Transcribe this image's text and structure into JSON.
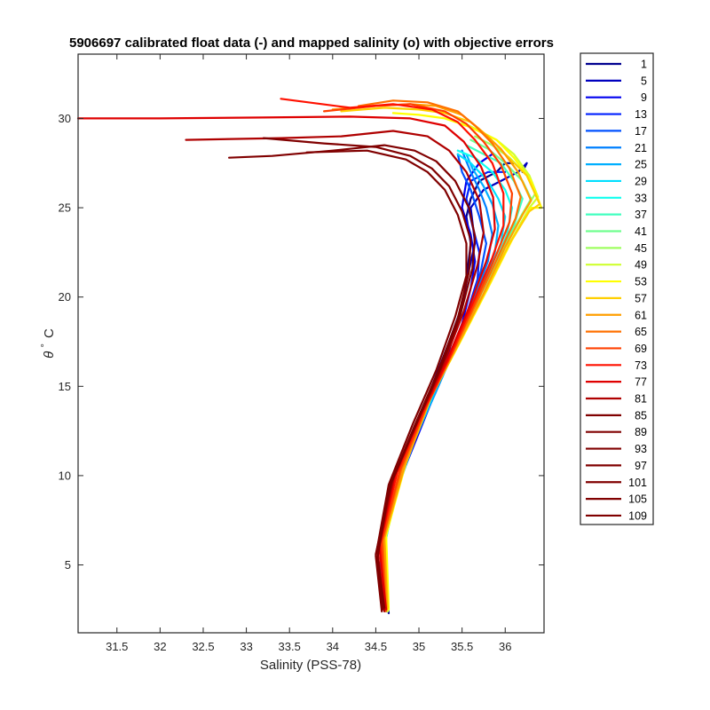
{
  "chart_data": {
    "type": "line",
    "title": "5906697 calibrated float data (-) and mapped salinity (o) with objective errors",
    "xlabel": "Salinity (PSS-78)",
    "ylabel_symbol": "θ",
    "ylabel_unit": "C",
    "xlim": [
      31.05,
      36.45
    ],
    "ylim": [
      1.2,
      33.6
    ],
    "xticks": [
      "31.5",
      "32",
      "32.5",
      "33",
      "33.5",
      "34",
      "34.5",
      "35",
      "35.5",
      "36"
    ],
    "yticks": [
      "5",
      "10",
      "15",
      "20",
      "25",
      "30"
    ],
    "grid": false,
    "legend_position": "outside-right",
    "legend_entries": [
      "1",
      "5",
      "9",
      "13",
      "17",
      "21",
      "25",
      "29",
      "33",
      "37",
      "41",
      "45",
      "49",
      "53",
      "57",
      "61",
      "65",
      "69",
      "73",
      "77",
      "81",
      "85",
      "89",
      "93",
      "97",
      "101",
      "105",
      "109"
    ],
    "legend_colors": [
      "#00008f",
      "#0000bf",
      "#0000ef",
      "#0020ff",
      "#0050ff",
      "#0080ff",
      "#00afff",
      "#00dfff",
      "#10ffef",
      "#40ffbf",
      "#70ff8f",
      "#9fff60",
      "#cfff30",
      "#ffff00",
      "#ffcf00",
      "#ff9f00",
      "#ff7000",
      "#ff4000",
      "#ff1000",
      "#df0000",
      "#af0000",
      "#800000",
      "#800000",
      "#800000",
      "#800000",
      "#800000",
      "#800000",
      "#800000"
    ],
    "series": [
      {
        "color": "#00008f",
        "x": [
          34.65,
          34.6,
          34.58,
          34.62,
          34.75,
          34.95,
          35.15,
          35.35,
          35.5,
          35.55,
          35.6,
          35.55,
          35.6,
          35.7,
          35.9,
          36.0,
          36.1
        ],
        "y": [
          2.3,
          3.5,
          5.0,
          7.0,
          9.5,
          12.5,
          15.0,
          17.5,
          19.5,
          21.0,
          23.0,
          24.5,
          25.5,
          26.5,
          27.0,
          27.5,
          27.5
        ]
      },
      {
        "color": "#0000bf",
        "x": [
          34.63,
          34.57,
          34.6,
          34.7,
          34.9,
          35.15,
          35.35,
          35.5,
          35.58,
          35.65,
          35.6,
          35.75,
          35.95,
          36.15,
          36.25,
          36.2
        ],
        "y": [
          2.5,
          4.0,
          6.0,
          8.5,
          11.5,
          14.5,
          17.0,
          19.5,
          21.5,
          23.0,
          25.0,
          26.0,
          26.5,
          27.0,
          27.5,
          27.0
        ]
      },
      {
        "color": "#0000ef",
        "x": [
          34.62,
          34.56,
          34.62,
          34.8,
          35.05,
          35.3,
          35.5,
          35.6,
          35.65,
          35.6,
          35.5,
          35.55,
          35.7,
          35.85
        ],
        "y": [
          2.4,
          4.5,
          7.0,
          10.0,
          13.0,
          16.0,
          18.5,
          20.5,
          22.0,
          23.5,
          25.0,
          26.5,
          27.5,
          28.0
        ]
      },
      {
        "color": "#0020ff",
        "x": [
          34.64,
          34.58,
          34.63,
          34.82,
          35.08,
          35.35,
          35.55,
          35.68,
          35.7,
          35.62,
          35.55,
          35.6,
          35.8,
          36.0
        ],
        "y": [
          2.6,
          4.8,
          7.5,
          10.5,
          13.5,
          16.5,
          19.0,
          21.0,
          22.5,
          24.0,
          25.5,
          26.5,
          27.0,
          27.0
        ]
      },
      {
        "color": "#0050ff",
        "x": [
          34.6,
          34.55,
          34.65,
          34.85,
          35.1,
          35.4,
          35.6,
          35.72,
          35.78,
          35.7,
          35.6,
          35.5,
          35.45
        ],
        "y": [
          2.8,
          5.0,
          7.8,
          11.0,
          14.0,
          17.0,
          19.5,
          21.5,
          23.0,
          24.5,
          26.0,
          27.0,
          28.0
        ]
      },
      {
        "color": "#0080ff",
        "x": [
          34.62,
          34.57,
          34.68,
          34.9,
          35.18,
          35.45,
          35.65,
          35.8,
          35.85,
          35.78,
          35.7,
          35.6,
          35.5
        ],
        "y": [
          2.7,
          5.2,
          8.2,
          11.5,
          14.5,
          17.5,
          20.0,
          22.0,
          23.5,
          25.0,
          26.0,
          27.0,
          28.2
        ]
      },
      {
        "color": "#00afff",
        "x": [
          34.6,
          34.56,
          34.7,
          34.95,
          35.22,
          35.5,
          35.72,
          35.88,
          35.92,
          35.85,
          35.75,
          35.62,
          35.55
        ],
        "y": [
          2.6,
          5.5,
          8.5,
          12.0,
          15.0,
          18.0,
          20.5,
          22.5,
          24.0,
          25.2,
          26.2,
          27.2,
          28.0
        ]
      },
      {
        "color": "#00dfff",
        "x": [
          34.61,
          34.58,
          34.72,
          34.98,
          35.25,
          35.55,
          35.78,
          35.95,
          36.0,
          35.92,
          35.8,
          35.6,
          35.45
        ],
        "y": [
          2.5,
          5.8,
          9.0,
          12.5,
          15.5,
          18.5,
          21.0,
          23.0,
          24.5,
          25.5,
          26.5,
          27.5,
          28.0
        ]
      },
      {
        "color": "#10ffef",
        "x": [
          34.63,
          34.6,
          34.75,
          35.0,
          35.3,
          35.6,
          35.85,
          36.02,
          36.08,
          36.0,
          35.85,
          35.65,
          35.45
        ],
        "y": [
          2.4,
          6.0,
          9.5,
          13.0,
          16.0,
          19.0,
          21.5,
          23.5,
          25.0,
          26.0,
          27.0,
          27.8,
          28.2
        ]
      },
      {
        "color": "#40ffbf",
        "x": [
          34.64,
          34.6,
          34.78,
          35.05,
          35.35,
          35.65,
          35.9,
          36.1,
          36.2,
          36.1,
          35.95,
          35.75,
          35.55
        ],
        "y": [
          2.5,
          6.2,
          10.0,
          13.5,
          16.5,
          19.5,
          22.0,
          24.0,
          25.5,
          26.5,
          27.5,
          28.0,
          28.5
        ]
      },
      {
        "color": "#70ff8f",
        "x": [
          34.62,
          34.6,
          34.8,
          35.08,
          35.38,
          35.7,
          35.95,
          36.18,
          36.3,
          36.2,
          36.0,
          35.8,
          35.6
        ],
        "y": [
          2.6,
          6.4,
          10.3,
          14.0,
          17.0,
          20.0,
          22.5,
          24.5,
          25.5,
          26.5,
          27.5,
          28.3,
          28.8
        ]
      },
      {
        "color": "#9fff60",
        "x": [
          34.63,
          34.61,
          34.82,
          35.1,
          35.42,
          35.75,
          36.0,
          36.22,
          36.35,
          36.25,
          36.05,
          35.85,
          35.65
        ],
        "y": [
          2.5,
          6.5,
          10.5,
          14.2,
          17.2,
          20.2,
          22.8,
          24.8,
          25.8,
          26.8,
          27.8,
          28.5,
          29.0
        ]
      },
      {
        "color": "#cfff30",
        "x": [
          34.64,
          34.62,
          34.83,
          35.12,
          35.45,
          35.78,
          36.05,
          36.28,
          36.38,
          36.28,
          36.1,
          35.9,
          35.7,
          35.5
        ],
        "y": [
          2.4,
          6.6,
          10.6,
          14.4,
          17.4,
          20.4,
          23.0,
          25.0,
          25.6,
          26.8,
          28.0,
          28.8,
          29.3,
          29.8
        ]
      },
      {
        "color": "#ffff00",
        "x": [
          34.65,
          34.62,
          34.85,
          35.15,
          35.48,
          35.8,
          36.08,
          36.3,
          36.42,
          36.3,
          36.1,
          35.9,
          35.6,
          35.3,
          35.0,
          34.7
        ],
        "y": [
          2.5,
          6.7,
          10.7,
          14.5,
          17.5,
          20.5,
          23.2,
          25.0,
          25.0,
          26.5,
          27.8,
          28.8,
          29.5,
          30.0,
          30.2,
          30.3
        ]
      },
      {
        "color": "#ffcf00",
        "x": [
          34.64,
          34.6,
          34.84,
          35.14,
          35.46,
          35.78,
          36.05,
          36.28,
          36.4,
          36.25,
          36.0,
          35.8,
          35.6,
          35.3,
          35.0,
          34.6,
          34.1
        ],
        "y": [
          2.6,
          6.6,
          10.6,
          14.4,
          17.4,
          20.4,
          23.0,
          24.8,
          25.2,
          26.8,
          28.0,
          29.0,
          29.8,
          30.3,
          30.5,
          30.6,
          30.4
        ]
      },
      {
        "color": "#ff9f00",
        "x": [
          34.63,
          34.6,
          34.83,
          35.12,
          35.44,
          35.75,
          36.0,
          36.2,
          36.3,
          36.15,
          35.95,
          35.7,
          35.5,
          35.2,
          34.9,
          34.5,
          34.0
        ],
        "y": [
          2.5,
          6.5,
          10.5,
          14.2,
          17.2,
          20.2,
          22.8,
          24.6,
          25.4,
          27.0,
          28.3,
          29.4,
          30.2,
          30.7,
          30.8,
          30.7,
          30.5
        ]
      },
      {
        "color": "#ff7000",
        "x": [
          34.62,
          34.58,
          34.8,
          35.1,
          35.4,
          35.7,
          35.95,
          36.12,
          36.18,
          36.05,
          35.85,
          35.65,
          35.45,
          35.1,
          34.7,
          34.3
        ],
        "y": [
          2.4,
          6.4,
          10.4,
          14.0,
          17.0,
          20.0,
          22.6,
          24.4,
          25.6,
          27.2,
          28.6,
          29.6,
          30.4,
          30.9,
          31.0,
          30.7
        ]
      },
      {
        "color": "#ff4000",
        "x": [
          34.61,
          34.57,
          34.78,
          35.08,
          35.38,
          35.66,
          35.9,
          36.05,
          36.08,
          35.95,
          35.75,
          35.55,
          35.3,
          34.9,
          34.5,
          33.9
        ],
        "y": [
          2.5,
          6.3,
          10.3,
          13.8,
          16.8,
          19.8,
          22.4,
          24.2,
          25.8,
          27.4,
          28.7,
          29.7,
          30.4,
          30.8,
          30.7,
          30.4
        ]
      },
      {
        "color": "#ff1000",
        "x": [
          34.6,
          34.55,
          34.75,
          35.05,
          35.35,
          35.62,
          35.85,
          35.98,
          35.98,
          35.85,
          35.65,
          35.45,
          35.15,
          34.7,
          34.2,
          33.4
        ],
        "y": [
          2.6,
          6.2,
          10.2,
          13.6,
          16.6,
          19.6,
          22.2,
          24.0,
          25.8,
          27.5,
          28.8,
          29.8,
          30.5,
          30.8,
          30.6,
          31.1
        ]
      },
      {
        "color": "#df0000",
        "x": [
          34.62,
          34.54,
          34.72,
          35.02,
          35.32,
          35.58,
          35.78,
          35.88,
          35.86,
          35.72,
          35.52,
          35.3,
          34.9,
          34.2,
          33.2,
          32.0,
          31.05
        ],
        "y": [
          2.5,
          6.0,
          10.0,
          13.4,
          16.4,
          19.4,
          22.0,
          23.8,
          25.6,
          27.3,
          28.7,
          29.6,
          30.0,
          30.1,
          30.05,
          30.0,
          30.0
        ]
      },
      {
        "color": "#af0000",
        "x": [
          34.6,
          34.52,
          34.7,
          35.0,
          35.28,
          35.52,
          35.68,
          35.75,
          35.7,
          35.55,
          35.35,
          35.1,
          34.7,
          34.1,
          33.4,
          32.3
        ],
        "y": [
          2.4,
          5.8,
          9.8,
          13.2,
          16.2,
          19.2,
          21.8,
          23.6,
          25.4,
          27.0,
          28.2,
          29.0,
          29.3,
          29.0,
          28.9,
          28.8
        ]
      },
      {
        "color": "#800000",
        "x": [
          34.58,
          34.5,
          34.68,
          34.98,
          35.25,
          35.48,
          35.62,
          35.65,
          35.58,
          35.42,
          35.2,
          34.95,
          34.6,
          34.0,
          33.3,
          32.8
        ],
        "y": [
          2.5,
          5.6,
          9.6,
          13.0,
          16.0,
          19.0,
          21.6,
          23.4,
          25.0,
          26.5,
          27.6,
          28.2,
          28.5,
          28.2,
          27.9,
          27.8
        ]
      },
      {
        "color": "#800000",
        "x": [
          34.6,
          34.52,
          34.66,
          34.95,
          35.22,
          35.45,
          35.58,
          35.6,
          35.5,
          35.35,
          35.15,
          34.9,
          34.5,
          33.9,
          33.2
        ],
        "y": [
          2.6,
          5.4,
          9.4,
          12.8,
          15.8,
          18.8,
          21.4,
          23.2,
          24.8,
          26.2,
          27.2,
          27.9,
          28.4,
          28.6,
          28.9
        ]
      },
      {
        "color": "#800000",
        "x": [
          34.57,
          34.5,
          34.65,
          34.93,
          35.2,
          35.42,
          35.55,
          35.55,
          35.45,
          35.3,
          35.1,
          34.85,
          34.4,
          33.7
        ],
        "y": [
          2.4,
          5.5,
          9.5,
          12.9,
          15.9,
          18.9,
          21.2,
          23.0,
          24.6,
          26.0,
          27.0,
          27.7,
          28.2,
          28.1
        ]
      }
    ]
  }
}
